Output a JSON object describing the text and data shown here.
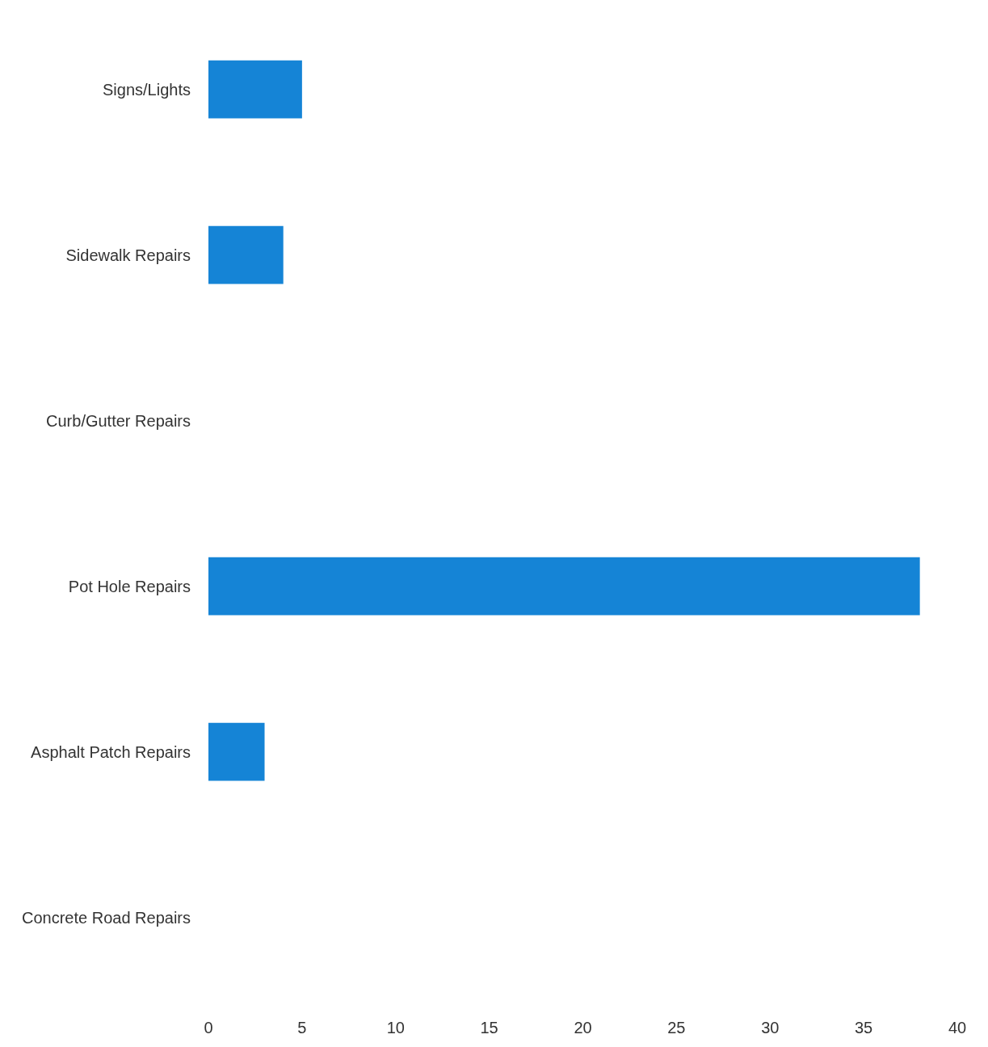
{
  "chart_data": {
    "type": "bar",
    "orientation": "horizontal",
    "categories": [
      "Signs/Lights",
      "Sidewalk Repairs",
      "Curb/Gutter Repairs",
      "Pot Hole Repairs",
      "Asphalt Patch Repairs",
      "Concrete Road Repairs"
    ],
    "values": [
      5,
      4,
      0,
      38,
      3,
      0
    ],
    "color": "#1584d6",
    "xlim": [
      0,
      40
    ],
    "xticks": [
      0,
      5,
      10,
      15,
      20,
      25,
      30,
      35,
      40
    ]
  }
}
